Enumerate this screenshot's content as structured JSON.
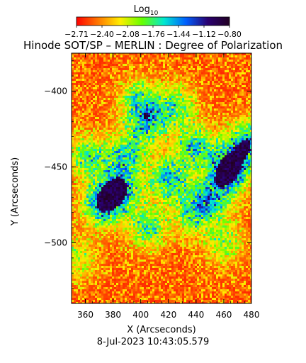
{
  "chart_data": {
    "type": "heatmap",
    "title": "Hinode SOT/SP – MERLIN : Degree of Polarization",
    "xlabel": "X (Arcseconds)",
    "ylabel": "Y (Arcseconds)",
    "timestamp": "8-Jul-2023 10:43:05.579",
    "colorbar": {
      "label": "Log",
      "label_sub": "10",
      "ticks": [
        "−2.71",
        "−2.40",
        "−2.08",
        "−1.76",
        "−1.44",
        "−1.12",
        "−0.80"
      ],
      "range": [
        -2.71,
        -0.8
      ],
      "colors": [
        "#ff0000",
        "#ff7a00",
        "#ffee00",
        "#66ff00",
        "#00e8d0",
        "#0060ff",
        "#2a0070",
        "#220022"
      ]
    },
    "xlim": [
      350,
      480
    ],
    "ylim": [
      -540,
      -375
    ],
    "xticks": [
      360,
      380,
      400,
      420,
      440,
      460,
      480
    ],
    "yticks": [
      -400,
      -450,
      -500
    ],
    "ytick_labels": [
      "−400",
      "−450",
      "−500"
    ],
    "features": [
      {
        "x": 464,
        "y": -452,
        "strength": 1.0
      },
      {
        "x": 477,
        "y": -434,
        "strength": 0.8
      },
      {
        "x": 384,
        "y": -465,
        "strength": 0.85
      },
      {
        "x": 372,
        "y": -475,
        "strength": 0.75
      },
      {
        "x": 405,
        "y": -420,
        "strength": 0.65
      },
      {
        "x": 420,
        "y": -458,
        "strength": 0.7
      },
      {
        "x": 440,
        "y": -437,
        "strength": 0.65
      },
      {
        "x": 390,
        "y": -442,
        "strength": 0.6
      },
      {
        "x": 362,
        "y": -443,
        "strength": 0.55
      },
      {
        "x": 405,
        "y": -490,
        "strength": 0.55
      },
      {
        "x": 438,
        "y": -480,
        "strength": 0.55
      },
      {
        "x": 452,
        "y": -470,
        "strength": 0.6
      },
      {
        "x": 426,
        "y": -410,
        "strength": 0.5
      },
      {
        "x": 398,
        "y": -406,
        "strength": 0.45
      },
      {
        "x": 460,
        "y": -500,
        "strength": 0.4
      },
      {
        "x": 355,
        "y": -510,
        "strength": 0.35
      }
    ]
  }
}
